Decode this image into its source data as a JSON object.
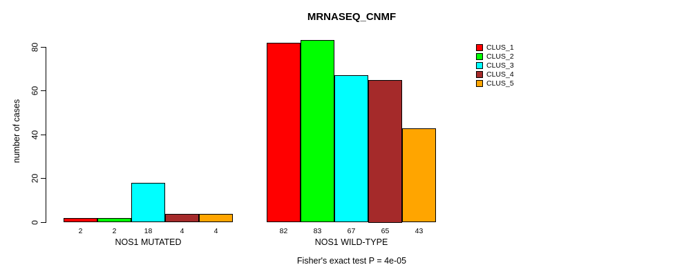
{
  "chart_data": {
    "type": "bar",
    "title": "MRNASEQ_CNMF",
    "ylabel": "number of cases",
    "xlabel": "",
    "ylim": [
      0,
      80
    ],
    "yticks": [
      0,
      20,
      40,
      60,
      80
    ],
    "grid": false,
    "legend_position": "topright",
    "series": [
      {
        "name": "CLUS_1",
        "color": "#FF0000"
      },
      {
        "name": "CLUS_2",
        "color": "#00FF00"
      },
      {
        "name": "CLUS_3",
        "color": "#00FFFF"
      },
      {
        "name": "CLUS_4",
        "color": "#A52A2A"
      },
      {
        "name": "CLUS_5",
        "color": "#FFA500"
      }
    ],
    "groups": [
      {
        "label": "NOS1 MUTATED",
        "values": [
          2,
          2,
          18,
          4,
          4
        ]
      },
      {
        "label": "NOS1 WILD-TYPE",
        "values": [
          82,
          83,
          67,
          65,
          43
        ]
      }
    ],
    "annotation": "Fisher's exact test P = 4e-05"
  }
}
